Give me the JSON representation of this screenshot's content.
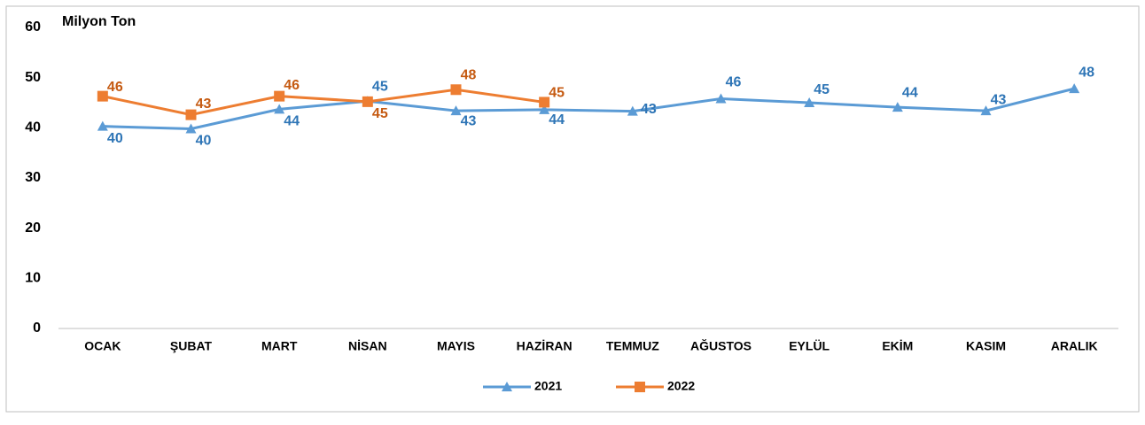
{
  "chart_data": {
    "type": "line",
    "y_label": "Milyon Ton",
    "categories": [
      "OCAK",
      "ŞUBAT",
      "MART",
      "NİSAN",
      "MAYIS",
      "HAZİRAN",
      "TEMMUZ",
      "AĞUSTOS",
      "EYLÜL",
      "EKİM",
      "KASIM",
      "ARALIK"
    ],
    "series": [
      {
        "name": "2021",
        "color": "#5b9bd5",
        "label_color": "#2e75b6",
        "marker": "triangle",
        "values": [
          40.3,
          39.8,
          43.7,
          45.3,
          43.4,
          43.6,
          43.3,
          45.8,
          45.0,
          44.1,
          43.4,
          47.8
        ],
        "value_labels": [
          "40",
          "40",
          "44",
          "45",
          "43",
          "44",
          "43",
          "46",
          "45",
          "44",
          "43",
          "48"
        ]
      },
      {
        "name": "2022",
        "color": "#ed7d31",
        "label_color": "#c55a11",
        "marker": "square",
        "values": [
          46.3,
          42.6,
          46.3,
          45.2,
          47.6,
          45.1,
          null,
          null,
          null,
          null,
          null,
          null
        ],
        "value_labels": [
          "46",
          "43",
          "46",
          "45",
          "48",
          "45",
          null,
          null,
          null,
          null,
          null,
          null
        ]
      }
    ],
    "ylim": [
      0,
      60
    ],
    "yticks": [
      0,
      10,
      20,
      30,
      40,
      50,
      60
    ],
    "grid": false,
    "legend": "bottom"
  }
}
